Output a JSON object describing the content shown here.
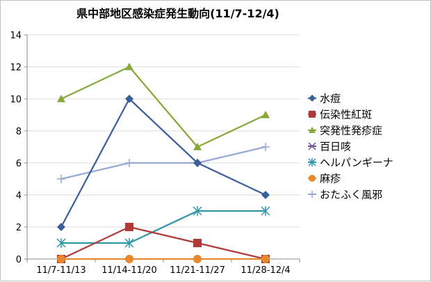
{
  "chart_data": {
    "type": "line",
    "title": "県中部地区感染症発生動向(11/7-12/4)",
    "xlabel": "",
    "ylabel": "",
    "categories": [
      "11/7-11/13",
      "11/14-11/20",
      "11/21-11/27",
      "11/28-12/4"
    ],
    "ylim": [
      0,
      14
    ],
    "yticks": [
      0,
      2,
      4,
      6,
      8,
      10,
      12,
      14
    ],
    "grid": true,
    "legend_position": "right",
    "series": [
      {
        "name": "水痘",
        "values": [
          2,
          10,
          6,
          4
        ],
        "color": "#3A5F9A",
        "marker": "diamond"
      },
      {
        "name": "伝染性紅斑",
        "values": [
          0,
          2,
          1,
          0
        ],
        "color": "#B03A37",
        "marker": "square"
      },
      {
        "name": "突発性発疹症",
        "values": [
          10,
          12,
          7,
          9
        ],
        "color": "#86A93A",
        "marker": "triangle"
      },
      {
        "name": "百日咳",
        "values": [
          null,
          null,
          null,
          null
        ],
        "color": "#6E4C96",
        "marker": "x"
      },
      {
        "name": "ヘルパンギーナ",
        "values": [
          1,
          1,
          3,
          3
        ],
        "color": "#2F96A8",
        "marker": "star"
      },
      {
        "name": "麻疹",
        "values": [
          0,
          0,
          0,
          0
        ],
        "color": "#E9872F",
        "marker": "circle"
      },
      {
        "name": "おたふく風邪",
        "values": [
          5,
          6,
          6,
          7
        ],
        "color": "#95A9D4",
        "marker": "plus"
      }
    ]
  }
}
